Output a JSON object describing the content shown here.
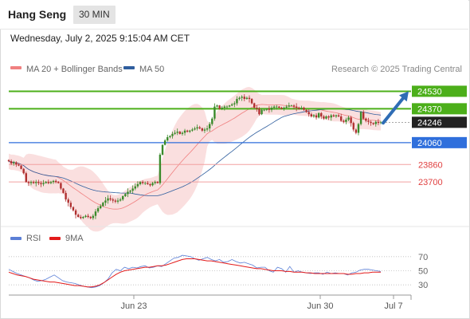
{
  "header": {
    "instrument": "Hang Seng",
    "timeframe": "30 MIN"
  },
  "timestamp": "Wednesday, July 2, 2025 9:15:04 AM CET",
  "legend": {
    "ma20": {
      "label": "MA 20 + Bollinger Bands",
      "color": "#f08080"
    },
    "ma50": {
      "label": "MA 50",
      "color": "#2f5e9e"
    }
  },
  "credit": "Research © 2025 Trading Central",
  "rsi_legend": {
    "rsi": {
      "label": "RSI",
      "color": "#5b7fd6"
    },
    "ma9": {
      "label": "9MA",
      "color": "#e31a1a"
    }
  },
  "colors": {
    "bull": "#3a8a2a",
    "bear": "#b03030",
    "resistance": "#4caf1a",
    "pivot": "#2f6fdc",
    "support": "#e04040",
    "last": "#222222",
    "arrow": "#2f6db5"
  },
  "chart_data": [
    {
      "type": "candlestick",
      "title": "Hang Seng",
      "timeframe": "30 MIN",
      "x_ticks": [
        "Jun 23",
        "Jun 30",
        "Jul 7"
      ],
      "ylim": [
        23300,
        24650
      ],
      "grid": false,
      "legend_position": "top-left",
      "last_price": 24246,
      "levels": [
        {
          "value": 24530,
          "label": "24530",
          "kind": "resistance"
        },
        {
          "value": 24370,
          "label": "24370",
          "kind": "resistance"
        },
        {
          "value": 24246,
          "label": "24246",
          "kind": "last"
        },
        {
          "value": 24060,
          "label": "24060",
          "kind": "pivot"
        },
        {
          "value": 23860,
          "label": "23860",
          "kind": "support"
        },
        {
          "value": 23700,
          "label": "23700",
          "kind": "support"
        }
      ],
      "forecast_arrow": {
        "from": 24240,
        "to": 24530,
        "direction": "up"
      },
      "close_path": [
        23890,
        23870,
        23880,
        23860,
        23850,
        23820,
        23780,
        23700,
        23690,
        23700,
        23690,
        23700,
        23690,
        23680,
        23690,
        23700,
        23690,
        23700,
        23710,
        23700,
        23690,
        23640,
        23600,
        23540,
        23510,
        23470,
        23440,
        23400,
        23380,
        23370,
        23380,
        23390,
        23380,
        23370,
        23390,
        23430,
        23460,
        23480,
        23510,
        23530,
        23550,
        23540,
        23530,
        23520,
        23530,
        23540,
        23570,
        23590,
        23610,
        23620,
        23640,
        23660,
        23680,
        23700,
        23690,
        23690,
        23680,
        23670,
        23690,
        23700,
        23690,
        23950,
        24040,
        24080,
        24110,
        24120,
        24140,
        24150,
        24160,
        24140,
        24150,
        24170,
        24160,
        24170,
        24180,
        24190,
        24200,
        24190,
        24170,
        24180,
        24190,
        24230,
        24280,
        24390,
        24400,
        24370,
        24380,
        24390,
        24390,
        24400,
        24410,
        24420,
        24460,
        24470,
        24480,
        24460,
        24470,
        24460,
        24420,
        24380,
        24370,
        24320,
        24360,
        24360,
        24370,
        24360,
        24380,
        24390,
        24390,
        24380,
        24370,
        24380,
        24390,
        24400,
        24400,
        24390,
        24380,
        24370,
        24380,
        24360,
        24340,
        24320,
        24300,
        24310,
        24290,
        24330,
        24300,
        24280,
        24300,
        24290,
        24310,
        24300,
        24310,
        24300,
        24260,
        24250,
        24270,
        24290,
        24240,
        24180,
        24150,
        24230,
        24340,
        24280,
        24260,
        24250,
        24240,
        24230,
        24250,
        24240,
        24246
      ]
    },
    {
      "type": "line",
      "title": "RSI",
      "ylim": [
        20,
        80
      ],
      "y_ticks": [
        70,
        50,
        30
      ],
      "series": [
        {
          "name": "RSI",
          "values": [
            52,
            49,
            46,
            44,
            42,
            40,
            37,
            35,
            36,
            38,
            41,
            44,
            40,
            36,
            34,
            33,
            32,
            30,
            28,
            27,
            26,
            27,
            29,
            33,
            38,
            47,
            52,
            50,
            55,
            53,
            55,
            54,
            56,
            57,
            54,
            55,
            57,
            56,
            60,
            64,
            68,
            69,
            72,
            71,
            70,
            67,
            65,
            67,
            69,
            66,
            64,
            66,
            62,
            63,
            66,
            63,
            61,
            62,
            60,
            58,
            54,
            55,
            55,
            50,
            48,
            55,
            53,
            48,
            56,
            48,
            50,
            48,
            47,
            46,
            47,
            47,
            45,
            48,
            46,
            47,
            46,
            46,
            44,
            47,
            48,
            51,
            52,
            52,
            51,
            50,
            49
          ]
        },
        {
          "name": "9MA",
          "values": [
            48,
            46,
            44,
            43,
            42,
            40,
            38,
            37,
            36,
            35,
            34,
            34,
            33,
            32,
            31,
            30,
            29,
            29,
            28,
            27,
            27,
            28,
            30,
            33,
            37,
            41,
            45,
            48,
            50,
            51,
            52,
            53,
            54,
            55,
            55,
            56,
            57,
            57,
            58,
            60,
            62,
            64,
            66,
            67,
            67,
            67,
            66,
            65,
            64,
            64,
            63,
            62,
            61,
            60,
            59,
            58,
            57,
            56,
            55,
            54,
            53,
            53,
            52,
            51,
            50,
            50,
            50,
            49,
            49,
            48,
            48,
            48,
            47,
            47,
            46,
            46,
            46,
            46,
            46,
            46,
            46,
            46,
            45,
            45,
            46,
            46,
            47,
            47,
            48,
            48,
            48
          ]
        }
      ]
    }
  ]
}
